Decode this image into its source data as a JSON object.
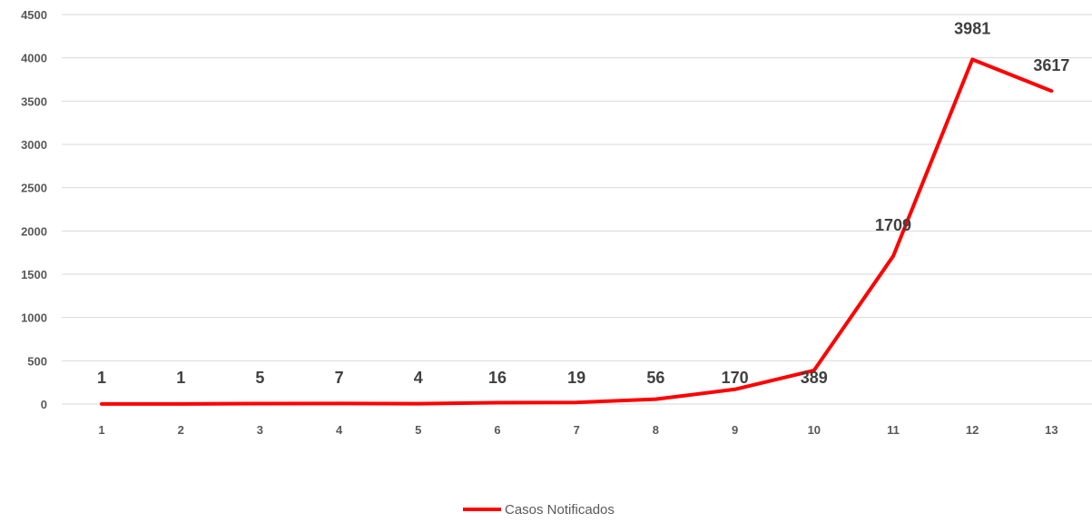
{
  "chart_data": {
    "type": "line",
    "x": [
      "1",
      "2",
      "3",
      "4",
      "5",
      "6",
      "7",
      "8",
      "9",
      "10",
      "11",
      "12",
      "13"
    ],
    "series": [
      {
        "name": "Casos Notificados",
        "values": [
          1,
          1,
          5,
          7,
          4,
          16,
          19,
          56,
          170,
          389,
          1709,
          3981,
          3617
        ],
        "color": "#ff0000"
      }
    ],
    "ylim": [
      0,
      4500
    ],
    "yticks": [
      0,
      500,
      1000,
      1500,
      2000,
      2500,
      3000,
      3500,
      4000,
      4500
    ],
    "grid": true,
    "legend": "bottom-center",
    "gridColor": "#d9d9d9"
  }
}
